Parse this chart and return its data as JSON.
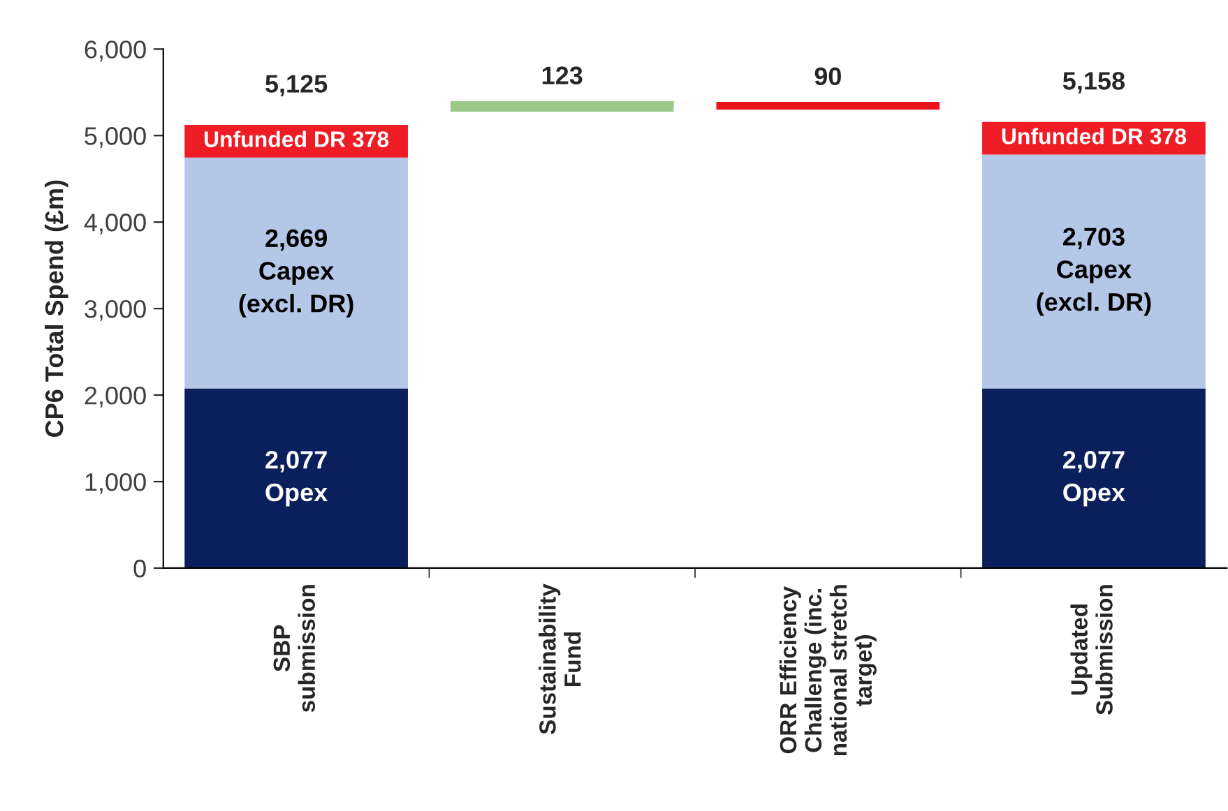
{
  "chart_data": {
    "type": "bar",
    "stacked": true,
    "ylabel": "CP6 Total Spend (£m)",
    "categories": [
      "SBP\nsubmission",
      "Sustainability\nFund",
      "ORR Efficiency\nChallenge (inc.\nnational stretch\ntarget)",
      "Updated\nSubmission"
    ],
    "series": [
      {
        "color": "#0a1f5c",
        "values": [
          2077,
          null,
          null,
          2077
        ],
        "value_labels": [
          "2,077\nOpex",
          null,
          null,
          "2,077\nOpex"
        ]
      },
      {
        "color": "#b4c7e7",
        "values": [
          2669,
          null,
          null,
          2703
        ],
        "value_labels": [
          "2,669\nCapex\n(excl. DR)",
          null,
          null,
          "2,703\nCapex\n(excl. DR)"
        ]
      },
      {
        "color": "#ee1c25",
        "values": [
          378,
          null,
          null,
          378
        ],
        "value_labels": [
          "Unfunded DR 378",
          null,
          null,
          "Unfunded DR 378"
        ]
      },
      {
        "colors": [
          null,
          "#9bc98a",
          "#e8141c",
          null
        ],
        "values": [
          null,
          123,
          -90,
          null
        ],
        "base": [
          null,
          5277,
          5390,
          null
        ],
        "value_labels": [
          null,
          "123",
          "90",
          null
        ]
      }
    ],
    "totals": [
      "5,125",
      null,
      null,
      "5,158"
    ],
    "ylim": [
      0,
      6000
    ],
    "yticks": [
      0,
      {
        "value": 1000,
        "label": "1,000"
      },
      {
        "value": 2000,
        "label": "2,000"
      },
      {
        "value": 3000,
        "label": "3,000"
      },
      {
        "value": 4000,
        "label": "4,000"
      },
      {
        "value": 5000,
        "label": "5,000"
      },
      {
        "value": 6000,
        "label": "6,000"
      }
    ],
    "grid": false,
    "legend": false
  }
}
